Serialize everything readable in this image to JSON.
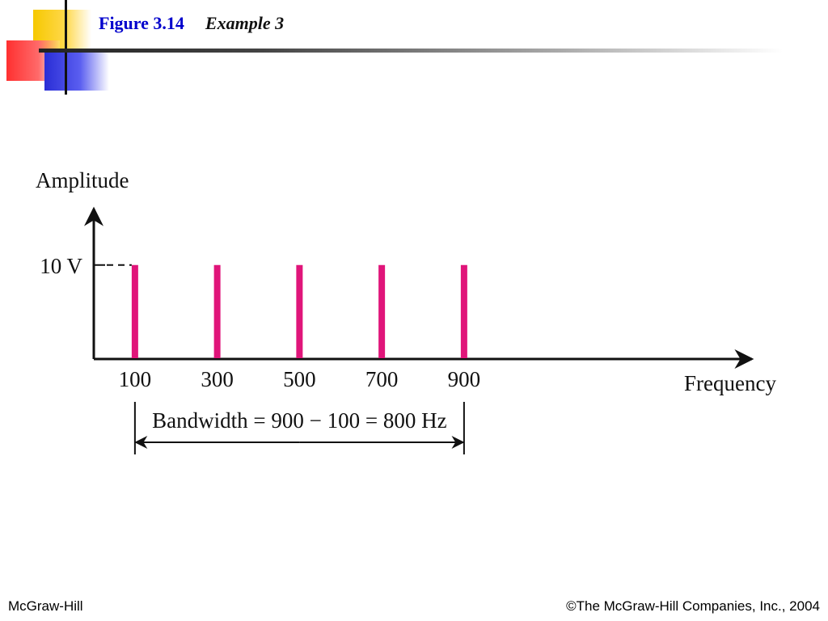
{
  "header": {
    "figure_label": "Figure 3.14",
    "subtitle": "Example 3"
  },
  "footer": {
    "left": "McGraw-Hill",
    "right": "©The McGraw-Hill Companies, Inc., 2004"
  },
  "colors": {
    "title": "#0000cc",
    "spectral_line": "#e0157a",
    "axis": "#111111"
  },
  "chart_data": {
    "type": "bar",
    "categories": [
      "100",
      "300",
      "500",
      "700",
      "900"
    ],
    "x": [
      100,
      300,
      500,
      700,
      900
    ],
    "values": [
      10,
      10,
      10,
      10,
      10
    ],
    "ylabel": "Amplitude",
    "xlabel": "Frequency",
    "y_marker_label": "10 V",
    "bandwidth_label": "Bandwidth = 900 − 100 = 800 Hz",
    "xlim": [
      0,
      1600
    ],
    "ylim": [
      0,
      16
    ],
    "grid": false
  }
}
